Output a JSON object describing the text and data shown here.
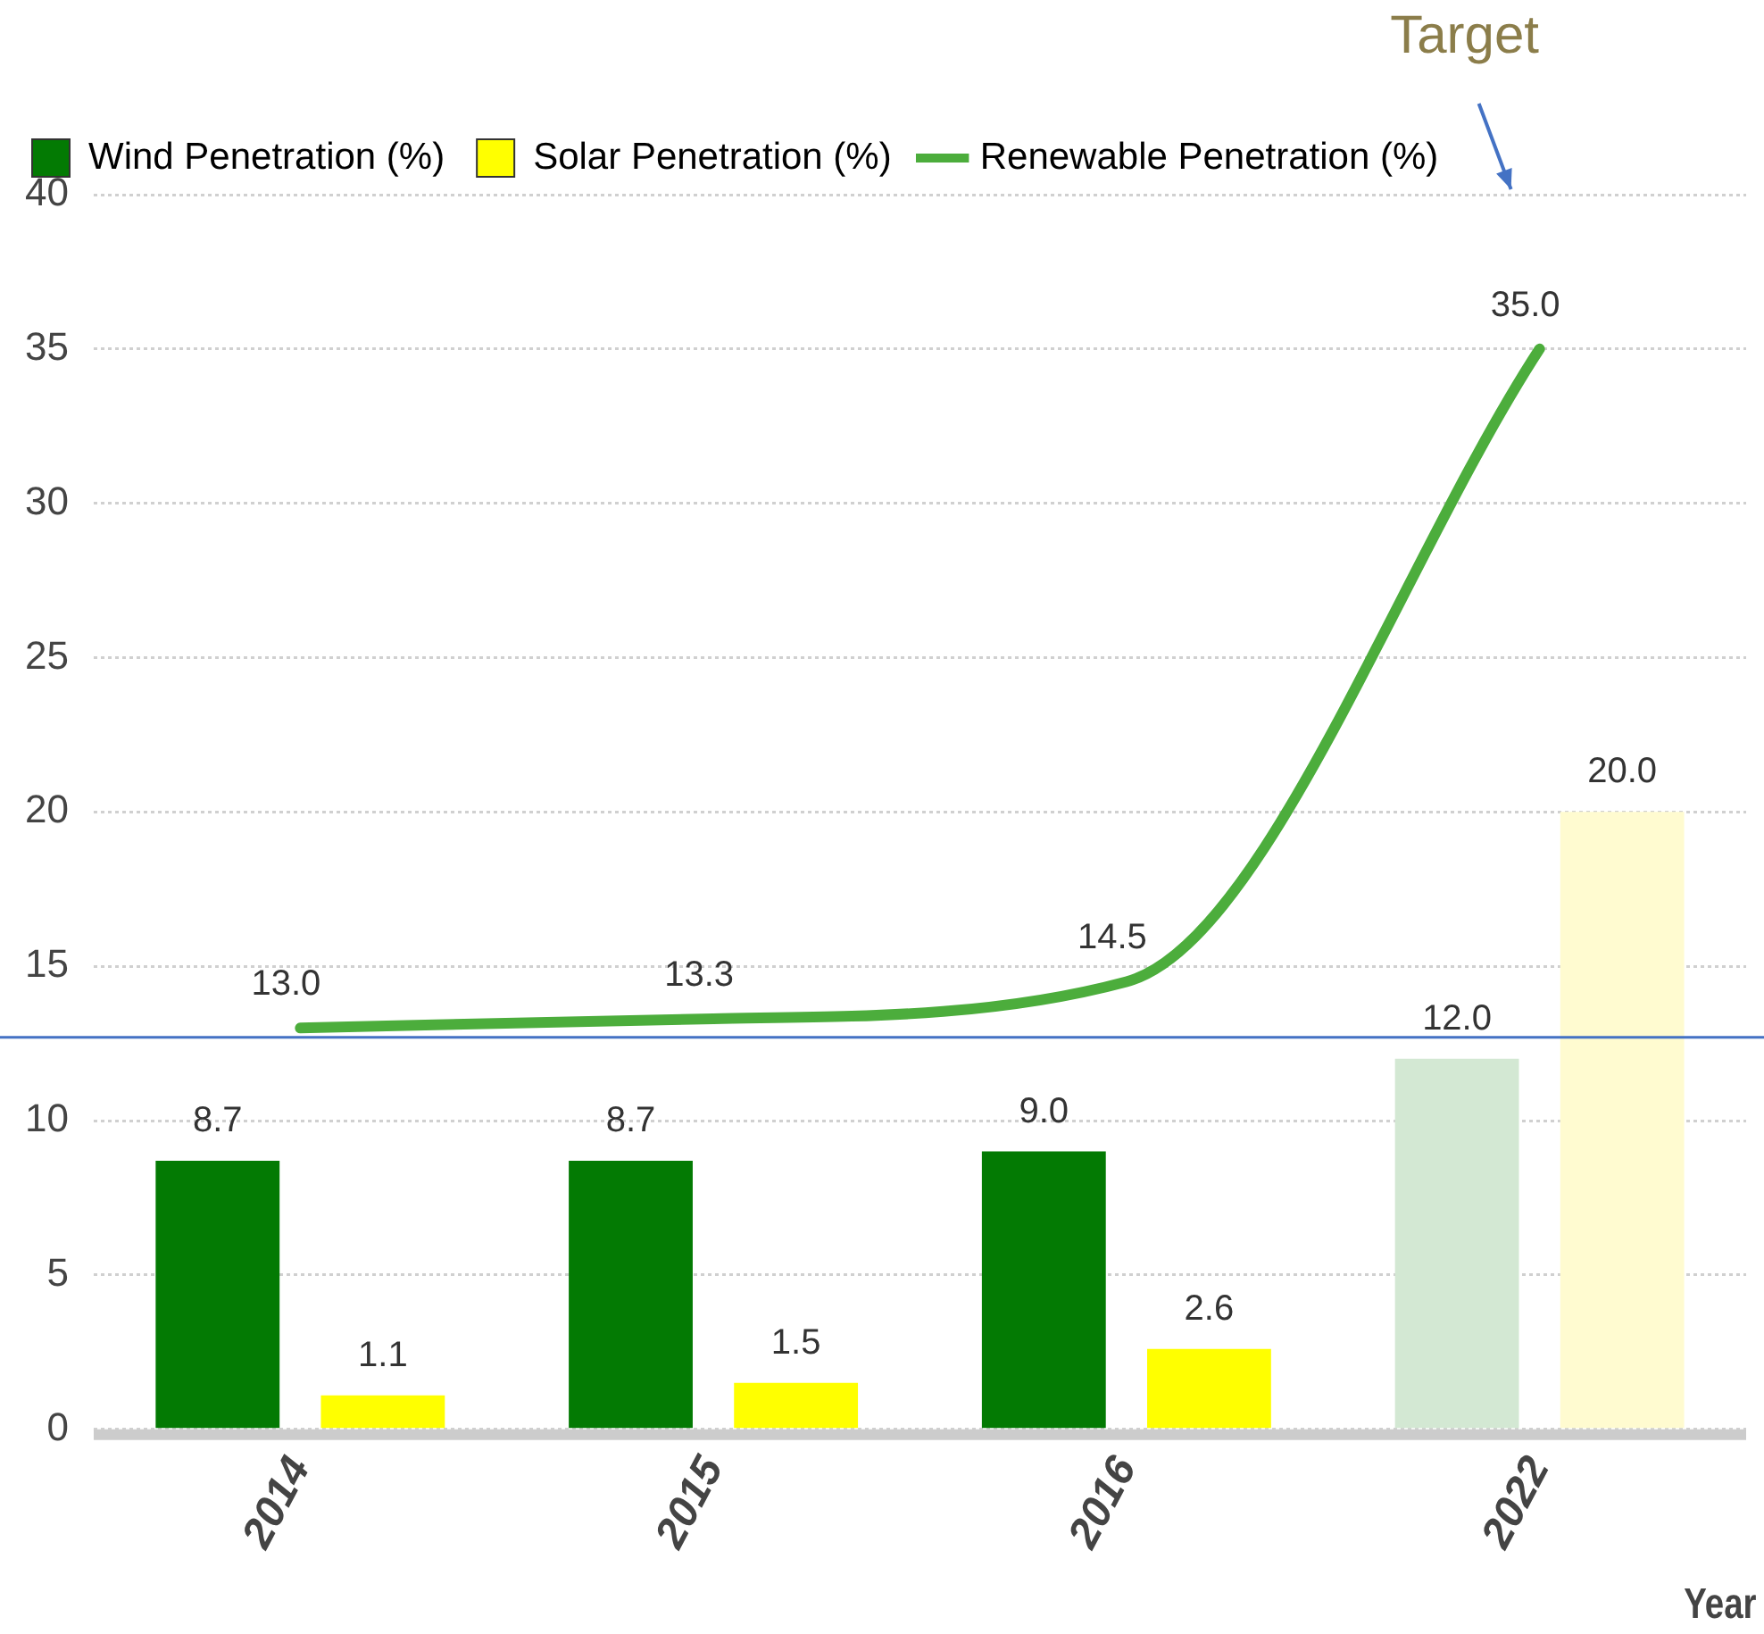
{
  "chart_data": {
    "type": "bar",
    "xlabel": "Year",
    "categories": [
      "2014",
      "2015",
      "2016",
      "2022"
    ],
    "series": [
      {
        "name": "Wind Penetration (%)",
        "color": "#037a03",
        "colors": [
          "#037a03",
          "#037a03",
          "#037a03",
          "#d3e8d3"
        ],
        "values": [
          8.7,
          8.7,
          9.0,
          12.0
        ],
        "value_labels": [
          "8.7",
          "8.7",
          "9.0",
          "12.0"
        ]
      },
      {
        "name": "Solar Penetration (%)",
        "color": "#ffff00",
        "colors": [
          "#ffff00",
          "#ffff00",
          "#ffff00",
          "#fffbd0"
        ],
        "values": [
          1.1,
          1.5,
          2.6,
          20.0
        ],
        "value_labels": [
          "1.1",
          "1.5",
          "2.6",
          "20.0"
        ]
      },
      {
        "name": "Renewable Penetration (%)",
        "type": "line",
        "color": "#4cad3c",
        "values": [
          13.0,
          13.3,
          14.5,
          35.0
        ],
        "value_labels": [
          "13.0",
          "13.3",
          "14.5",
          "35.0"
        ],
        "marker": "none"
      }
    ],
    "ylim": [
      0,
      40
    ],
    "yticks": [
      0,
      5,
      10,
      15,
      20,
      25,
      30,
      35,
      40
    ],
    "grid": "y",
    "legend": "top left",
    "ref_lines": [
      {
        "axis": "y",
        "value": 12.7,
        "color": "#4472c4"
      }
    ],
    "annotations": [
      "Target"
    ]
  }
}
